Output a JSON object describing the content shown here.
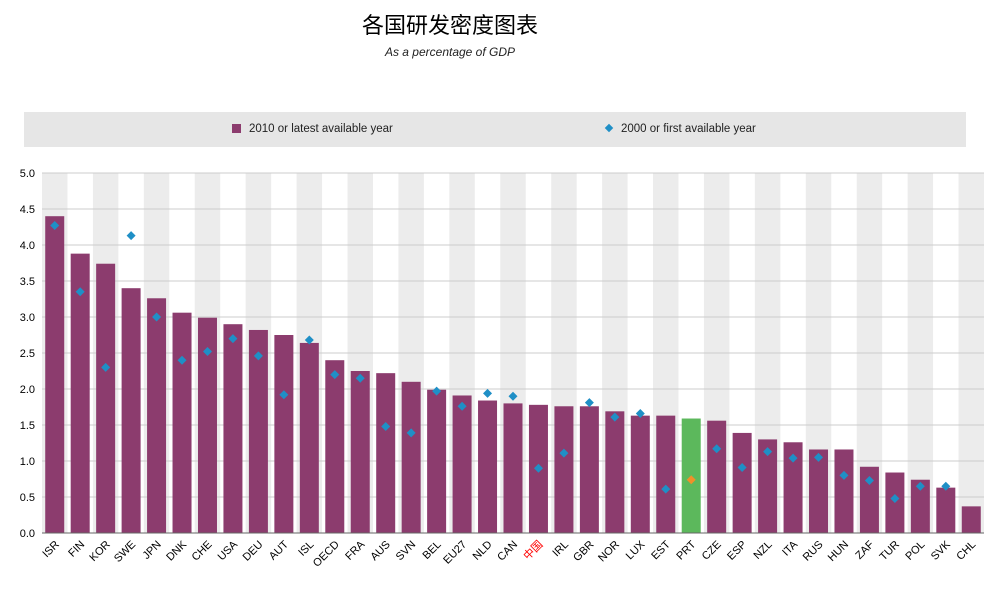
{
  "title": "各国研发密度图表",
  "subtitle": "As a percentage of GDP",
  "legend": {
    "series1": "2010 or latest available year",
    "series2": "2000 or first available year"
  },
  "colors": {
    "bar": "#8c3c6e",
    "highlight_bar": "#5cb85c",
    "marker": "#1f8fc6",
    "highlight_marker": "#f0902a",
    "highlight_label": "#ff0000",
    "grid": "#cccccc",
    "band": "#ececec"
  },
  "chart_data": {
    "type": "bar",
    "categories": [
      "ISR",
      "FIN",
      "KOR",
      "SWE",
      "JPN",
      "DNK",
      "CHE",
      "USA",
      "DEU",
      "AUT",
      "ISL",
      "OECD",
      "FRA",
      "AUS",
      "SVN",
      "BEL",
      "EU27",
      "NLD",
      "CAN",
      "中国",
      "IRL",
      "GBR",
      "NOR",
      "LUX",
      "EST",
      "PRT",
      "CZE",
      "ESP",
      "NZL",
      "ITA",
      "RUS",
      "HUN",
      "ZAF",
      "TUR",
      "POL",
      "SVK",
      "CHL"
    ],
    "series": [
      {
        "name": "2010 or latest available year",
        "kind": "bar",
        "values": [
          4.4,
          3.88,
          3.74,
          3.4,
          3.26,
          3.06,
          2.99,
          2.9,
          2.82,
          2.75,
          2.64,
          2.4,
          2.25,
          2.22,
          2.1,
          1.99,
          1.91,
          1.84,
          1.8,
          1.78,
          1.76,
          1.76,
          1.69,
          1.63,
          1.63,
          1.59,
          1.56,
          1.39,
          1.3,
          1.26,
          1.16,
          1.16,
          0.92,
          0.84,
          0.74,
          0.63,
          0.37
        ]
      },
      {
        "name": "2000 or first available year",
        "kind": "marker",
        "values": [
          4.27,
          3.35,
          2.3,
          4.13,
          3.0,
          2.4,
          2.52,
          2.7,
          2.46,
          1.92,
          2.68,
          2.2,
          2.15,
          1.48,
          1.39,
          1.97,
          1.76,
          1.94,
          1.9,
          0.9,
          1.11,
          1.81,
          1.61,
          1.66,
          0.61,
          0.74,
          1.17,
          0.91,
          1.13,
          1.04,
          1.05,
          0.8,
          0.73,
          0.48,
          0.65,
          0.65,
          null
        ]
      }
    ],
    "highlight": {
      "bar": "PRT",
      "label": "中国"
    },
    "ylim": [
      0,
      5
    ],
    "yticks": [
      "0.0",
      "0.5",
      "1.0",
      "1.5",
      "2.0",
      "2.5",
      "3.0",
      "3.5",
      "4.0",
      "4.5",
      "5.0"
    ],
    "grid": true,
    "legend_position": "top"
  }
}
